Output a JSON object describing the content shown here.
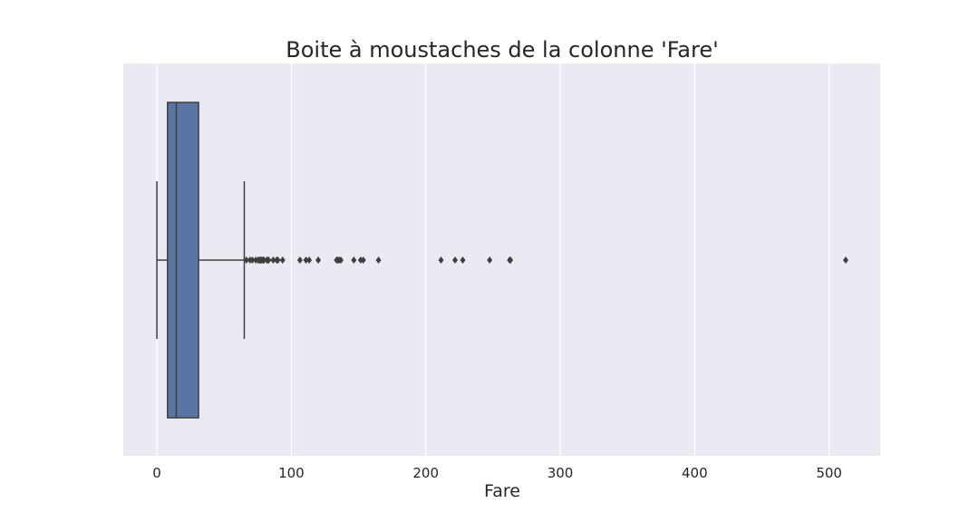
{
  "chart_data": {
    "type": "box",
    "title": "Boite à moustaches de la colonne 'Fare'",
    "xlabel": "Fare",
    "ylabel": "",
    "orientation": "horizontal",
    "xlim": [
      -25,
      538
    ],
    "xticks": [
      0,
      100,
      200,
      300,
      400,
      500
    ],
    "grid": true,
    "series": [
      {
        "whisker_low": 0,
        "q1": 7.9,
        "median": 14.45,
        "q3": 31,
        "whisker_high": 65,
        "outliers": [
          66.6,
          69.3,
          71.0,
          73.5,
          75.25,
          76.3,
          76.7,
          77.3,
          77.96,
          78.85,
          79.2,
          79.65,
          81.86,
          82.17,
          83.16,
          86.5,
          89.1,
          90.0,
          93.5,
          106.4,
          110.9,
          113.3,
          120.0,
          133.65,
          134.5,
          135.63,
          136.8,
          146.5,
          151.55,
          153.46,
          164.87,
          211.34,
          221.78,
          227.53,
          247.52,
          262.38,
          263.0,
          512.33
        ]
      }
    ],
    "colors": {
      "background": "#eaeaf2",
      "grid": "#ffffff",
      "box_fill": "#5975a4",
      "lines": "#3f3f3f",
      "outlier": "#3f3f3f",
      "text": "#262626"
    }
  }
}
